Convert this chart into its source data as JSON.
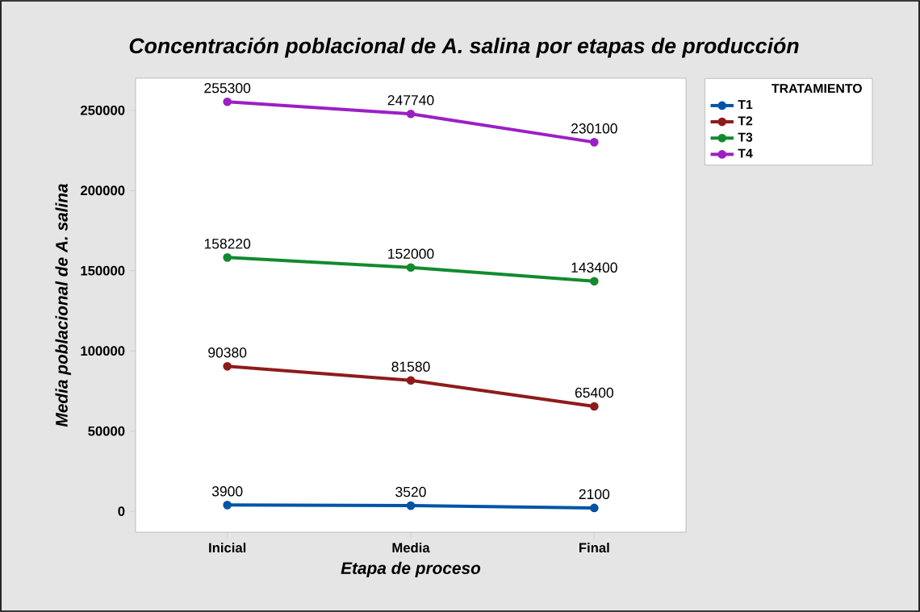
{
  "chart_data": {
    "type": "line",
    "title": "Concentración poblacional de A. salina por etapas de producción",
    "xlabel": "Etapa de proceso",
    "ylabel": "Media poblacional de A. salina",
    "legend_title": "TRATAMIENTO",
    "categories": [
      "Inicial",
      "Media",
      "Final"
    ],
    "series": [
      {
        "name": "T1",
        "color": "#0054a6",
        "values": [
          3900,
          3520,
          2100
        ]
      },
      {
        "name": "T2",
        "color": "#8e1b1b",
        "values": [
          90380,
          81580,
          65400
        ]
      },
      {
        "name": "T3",
        "color": "#128a2e",
        "values": [
          158220,
          152000,
          143400
        ]
      },
      {
        "name": "T4",
        "color": "#9b1fc4",
        "values": [
          255300,
          247740,
          230100
        ]
      }
    ],
    "ylim": [
      -13000,
      270000
    ],
    "yticks": [
      0,
      50000,
      100000,
      150000,
      200000,
      250000
    ],
    "data_labels": true,
    "legend": "top right",
    "marker": "circle",
    "line_style": "solid",
    "grid": false
  }
}
